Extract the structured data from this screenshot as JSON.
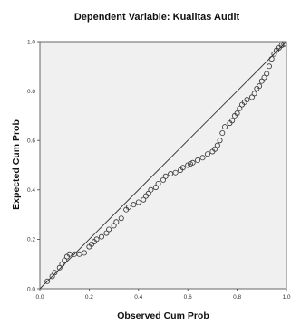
{
  "chart_data": {
    "type": "scatter",
    "title": "Dependent Variable: Kualitas Audit",
    "xlabel": "Observed Cum Prob",
    "ylabel": "Expected Cum Prob",
    "xlim": [
      0,
      1
    ],
    "ylim": [
      0,
      1
    ],
    "xticks": [
      "0.0",
      "0.2",
      "0.4",
      "0.6",
      "0.8",
      "1.0"
    ],
    "yticks": [
      "0.0",
      "0.2",
      "0.4",
      "0.6",
      "0.8",
      "1.0"
    ],
    "reference_line": [
      [
        0,
        0
      ],
      [
        1,
        1
      ]
    ],
    "grid": false,
    "background_color": "#f0f0f0",
    "marker_color": "#333333",
    "line_color": "#333333",
    "points": [
      [
        0.03,
        0.03
      ],
      [
        0.05,
        0.05
      ],
      [
        0.06,
        0.065
      ],
      [
        0.08,
        0.085
      ],
      [
        0.09,
        0.1
      ],
      [
        0.1,
        0.115
      ],
      [
        0.11,
        0.13
      ],
      [
        0.12,
        0.14
      ],
      [
        0.14,
        0.14
      ],
      [
        0.16,
        0.14
      ],
      [
        0.18,
        0.145
      ],
      [
        0.2,
        0.17
      ],
      [
        0.21,
        0.18
      ],
      [
        0.22,
        0.19
      ],
      [
        0.23,
        0.2
      ],
      [
        0.25,
        0.21
      ],
      [
        0.27,
        0.225
      ],
      [
        0.28,
        0.24
      ],
      [
        0.3,
        0.255
      ],
      [
        0.31,
        0.27
      ],
      [
        0.33,
        0.285
      ],
      [
        0.35,
        0.32
      ],
      [
        0.36,
        0.33
      ],
      [
        0.38,
        0.34
      ],
      [
        0.4,
        0.35
      ],
      [
        0.42,
        0.36
      ],
      [
        0.43,
        0.375
      ],
      [
        0.44,
        0.385
      ],
      [
        0.45,
        0.4
      ],
      [
        0.47,
        0.41
      ],
      [
        0.48,
        0.425
      ],
      [
        0.5,
        0.44
      ],
      [
        0.51,
        0.455
      ],
      [
        0.53,
        0.465
      ],
      [
        0.55,
        0.47
      ],
      [
        0.57,
        0.48
      ],
      [
        0.58,
        0.49
      ],
      [
        0.6,
        0.5
      ],
      [
        0.61,
        0.505
      ],
      [
        0.62,
        0.51
      ],
      [
        0.64,
        0.52
      ],
      [
        0.66,
        0.53
      ],
      [
        0.68,
        0.545
      ],
      [
        0.7,
        0.555
      ],
      [
        0.71,
        0.565
      ],
      [
        0.72,
        0.58
      ],
      [
        0.73,
        0.6
      ],
      [
        0.74,
        0.63
      ],
      [
        0.75,
        0.655
      ],
      [
        0.77,
        0.67
      ],
      [
        0.78,
        0.68
      ],
      [
        0.79,
        0.7
      ],
      [
        0.8,
        0.71
      ],
      [
        0.81,
        0.73
      ],
      [
        0.82,
        0.745
      ],
      [
        0.83,
        0.755
      ],
      [
        0.84,
        0.765
      ],
      [
        0.86,
        0.775
      ],
      [
        0.87,
        0.79
      ],
      [
        0.88,
        0.81
      ],
      [
        0.89,
        0.82
      ],
      [
        0.9,
        0.84
      ],
      [
        0.91,
        0.855
      ],
      [
        0.92,
        0.87
      ],
      [
        0.93,
        0.9
      ],
      [
        0.94,
        0.93
      ],
      [
        0.95,
        0.95
      ],
      [
        0.96,
        0.965
      ],
      [
        0.97,
        0.975
      ],
      [
        0.98,
        0.985
      ],
      [
        0.99,
        0.99
      ]
    ]
  }
}
